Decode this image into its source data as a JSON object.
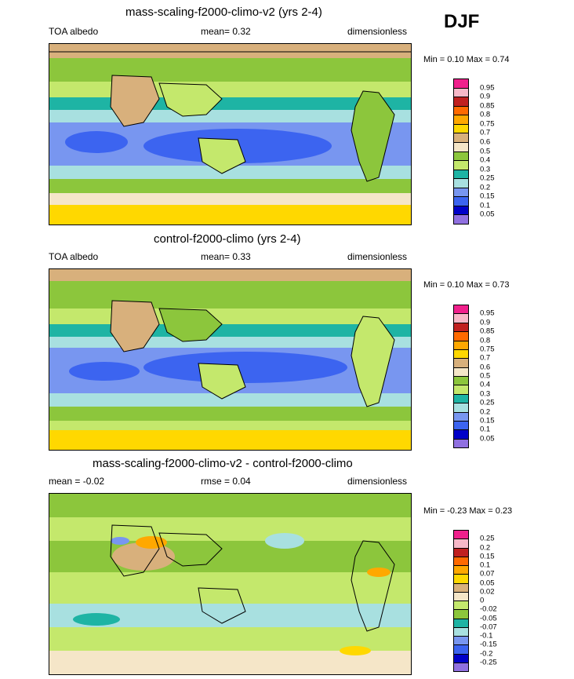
{
  "season": "DJF",
  "panels": [
    {
      "title": "mass-scaling-f2000-climo-v2 (yrs 2-4)",
      "left_label": "TOA albedo",
      "center_label": "mean=   0.32",
      "right_label": "dimensionless",
      "minmax": "Min =   0.10 Max =   0.74",
      "colorbar_labels": [
        "0.95",
        "0.9",
        "0.85",
        "0.8",
        "0.75",
        "0.7",
        "0.6",
        "0.5",
        "0.4",
        "0.3",
        "0.25",
        "0.2",
        "0.15",
        "0.1",
        "0.05"
      ],
      "colorbar_colors": [
        "#f0208c",
        "#f7b8c8",
        "#c02020",
        "#ff6a00",
        "#ffa800",
        "#ffd800",
        "#d8b07c",
        "#f5e6c8",
        "#8cc63c",
        "#c4e86c",
        "#1eb4a4",
        "#a8e0e0",
        "#7896f0",
        "#3c64f0",
        "#0000c8",
        "#9070e0"
      ]
    },
    {
      "title": "control-f2000-climo (yrs 2-4)",
      "left_label": "TOA albedo",
      "center_label": "mean=   0.33",
      "right_label": "dimensionless",
      "minmax": "Min =   0.10 Max =   0.73",
      "colorbar_labels": [
        "0.95",
        "0.9",
        "0.85",
        "0.8",
        "0.75",
        "0.7",
        "0.6",
        "0.5",
        "0.4",
        "0.3",
        "0.25",
        "0.2",
        "0.15",
        "0.1",
        "0.05"
      ],
      "colorbar_colors": [
        "#f0208c",
        "#f7b8c8",
        "#c02020",
        "#ff6a00",
        "#ffa800",
        "#ffd800",
        "#d8b07c",
        "#f5e6c8",
        "#8cc63c",
        "#c4e86c",
        "#1eb4a4",
        "#a8e0e0",
        "#7896f0",
        "#3c64f0",
        "#0000c8",
        "#9070e0"
      ]
    },
    {
      "title": "mass-scaling-f2000-climo-v2 - control-f2000-climo",
      "left_label": "mean =  -0.02",
      "center_label": "rmse =   0.04",
      "right_label": "dimensionless",
      "minmax": "Min =  -0.23 Max =   0.23",
      "colorbar_labels": [
        "0.25",
        "0.2",
        "0.15",
        "0.1",
        "0.07",
        "0.05",
        "0.02",
        "0",
        "-0.02",
        "-0.05",
        "-0.07",
        "-0.1",
        "-0.15",
        "-0.2",
        "-0.25"
      ],
      "colorbar_colors": [
        "#f0208c",
        "#f7b8c8",
        "#c02020",
        "#ff6a00",
        "#ffa800",
        "#ffd800",
        "#d8b07c",
        "#f5e6c8",
        "#c4e86c",
        "#8cc63c",
        "#1eb4a4",
        "#a8e0e0",
        "#7896f0",
        "#3c64f0",
        "#0000c8",
        "#9070e0"
      ]
    }
  ]
}
